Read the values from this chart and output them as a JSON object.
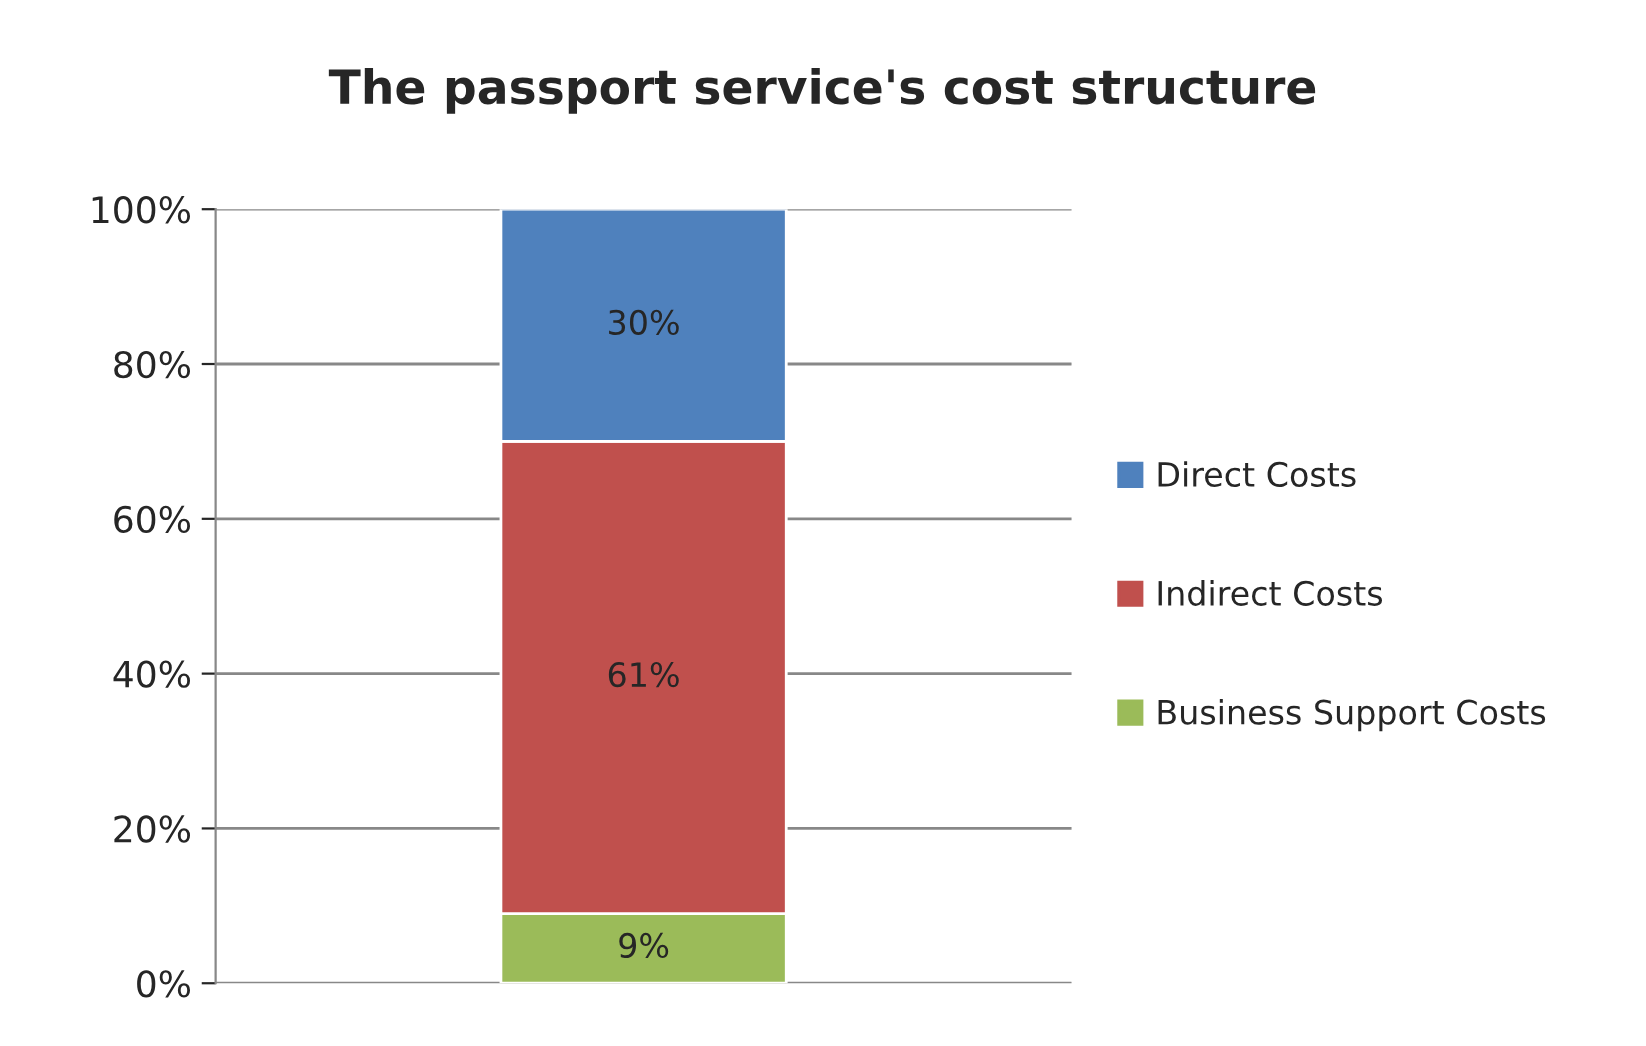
{
  "chart_data": {
    "type": "bar",
    "title": "The passport service's cost structure",
    "stacked": true,
    "categories": [
      null
    ],
    "series": [
      {
        "name": "Business Support Costs",
        "color": "#9bbb59",
        "values": [
          9
        ],
        "value_labels": [
          "9%"
        ]
      },
      {
        "name": "Indirect Costs",
        "color": "#c0504d",
        "values": [
          61
        ],
        "value_labels": [
          "61%"
        ]
      },
      {
        "name": "Direct Costs",
        "color": "#4f81bd",
        "values": [
          30
        ],
        "value_labels": [
          "30%"
        ]
      }
    ],
    "ylim": [
      0,
      100
    ],
    "yticks": [
      {
        "value": 0,
        "label": "0%"
      },
      {
        "value": 20,
        "label": "20%"
      },
      {
        "value": 40,
        "label": "40%"
      },
      {
        "value": 60,
        "label": "60%"
      },
      {
        "value": 80,
        "label": "80%"
      },
      {
        "value": 100,
        "label": "100%"
      }
    ],
    "grid": "y",
    "legend": "right"
  }
}
